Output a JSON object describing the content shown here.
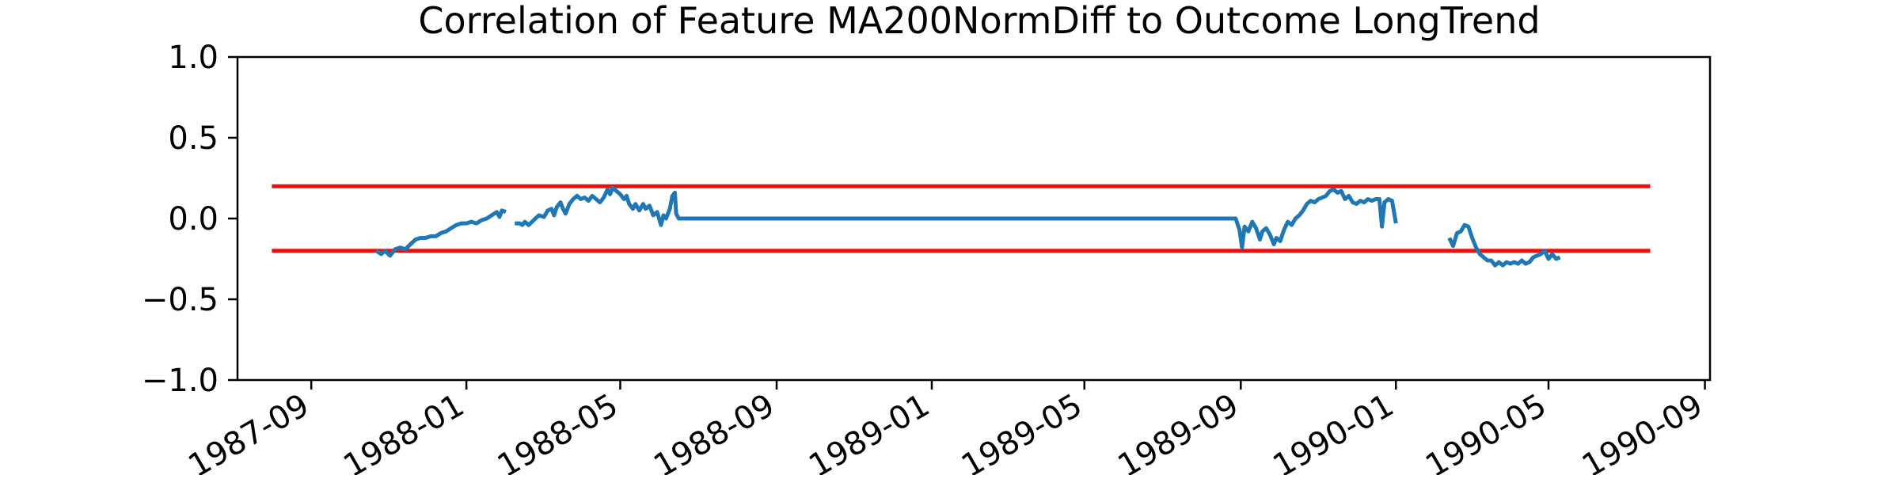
{
  "chart_data": {
    "type": "line",
    "title": "Correlation of Feature MA200NormDiff to Outcome LongTrend",
    "xlabel": "",
    "ylabel": "",
    "x_axis_type": "date",
    "xlim": [
      "1987-07-05",
      "1990-09-05"
    ],
    "ylim": [
      -1.0,
      1.0
    ],
    "grid": false,
    "x_ticks": [
      {
        "value": "1987-09-01",
        "label": "1987-09"
      },
      {
        "value": "1988-01-01",
        "label": "1988-01"
      },
      {
        "value": "1988-05-01",
        "label": "1988-05"
      },
      {
        "value": "1988-09-01",
        "label": "1988-09"
      },
      {
        "value": "1989-01-01",
        "label": "1989-01"
      },
      {
        "value": "1989-05-01",
        "label": "1989-05"
      },
      {
        "value": "1989-09-01",
        "label": "1989-09"
      },
      {
        "value": "1990-01-01",
        "label": "1990-01"
      },
      {
        "value": "1990-05-01",
        "label": "1990-05"
      },
      {
        "value": "1990-09-01",
        "label": "1990-09"
      }
    ],
    "y_ticks": [
      {
        "value": -1.0,
        "label": "−1.0"
      },
      {
        "value": -0.5,
        "label": "−0.5"
      },
      {
        "value": 0.0,
        "label": "0.0"
      },
      {
        "value": 0.5,
        "label": "0.5"
      },
      {
        "value": 1.0,
        "label": "1.0"
      }
    ],
    "series": [
      {
        "color": "#1f77b4",
        "segments": [
          [
            [
              "1987-10-22",
              -0.2
            ],
            [
              "1987-10-26",
              -0.22
            ],
            [
              "1987-10-29",
              -0.2
            ],
            [
              "1987-11-02",
              -0.23
            ],
            [
              "1987-11-06",
              -0.19
            ],
            [
              "1987-11-10",
              -0.18
            ],
            [
              "1987-11-14",
              -0.19
            ],
            [
              "1987-11-18",
              -0.16
            ],
            [
              "1987-11-22",
              -0.13
            ],
            [
              "1987-11-26",
              -0.12
            ],
            [
              "1987-11-30",
              -0.12
            ],
            [
              "1987-12-04",
              -0.11
            ],
            [
              "1987-12-08",
              -0.11
            ],
            [
              "1987-12-12",
              -0.09
            ],
            [
              "1987-12-16",
              -0.08
            ],
            [
              "1987-12-20",
              -0.06
            ],
            [
              "1987-12-24",
              -0.04
            ],
            [
              "1987-12-28",
              -0.03
            ],
            [
              "1988-01-01",
              -0.03
            ],
            [
              "1988-01-05",
              -0.02
            ],
            [
              "1988-01-09",
              -0.03
            ],
            [
              "1988-01-13",
              -0.01
            ],
            [
              "1988-01-17",
              0.0
            ],
            [
              "1988-01-21",
              0.02
            ],
            [
              "1988-01-25",
              0.04
            ],
            [
              "1988-01-27",
              0.01
            ],
            [
              "1988-01-29",
              0.05
            ],
            [
              "1988-02-01",
              0.04
            ]
          ],
          [
            [
              "1988-02-08",
              -0.03
            ],
            [
              "1988-02-12",
              -0.03
            ],
            [
              "1988-02-14",
              -0.04
            ],
            [
              "1988-02-16",
              -0.02
            ],
            [
              "1988-02-19",
              -0.04
            ],
            [
              "1988-02-23",
              -0.01
            ],
            [
              "1988-02-27",
              0.02
            ],
            [
              "1988-03-02",
              0.01
            ],
            [
              "1988-03-05",
              0.05
            ],
            [
              "1988-03-08",
              0.06
            ],
            [
              "1988-03-10",
              0.02
            ],
            [
              "1988-03-12",
              0.07
            ],
            [
              "1988-03-15",
              0.1
            ],
            [
              "1988-03-17",
              0.06
            ],
            [
              "1988-03-19",
              0.03
            ],
            [
              "1988-03-22",
              0.09
            ],
            [
              "1988-03-25",
              0.12
            ],
            [
              "1988-03-28",
              0.14
            ],
            [
              "1988-03-31",
              0.12
            ],
            [
              "1988-04-03",
              0.13
            ],
            [
              "1988-04-06",
              0.11
            ],
            [
              "1988-04-09",
              0.14
            ],
            [
              "1988-04-12",
              0.12
            ],
            [
              "1988-04-15",
              0.1
            ],
            [
              "1988-04-18",
              0.13
            ],
            [
              "1988-04-21",
              0.18
            ],
            [
              "1988-04-23",
              0.15
            ],
            [
              "1988-04-25",
              0.19
            ],
            [
              "1988-04-28",
              0.17
            ],
            [
              "1988-05-01",
              0.15
            ],
            [
              "1988-05-04",
              0.12
            ],
            [
              "1988-05-06",
              0.14
            ],
            [
              "1988-05-08",
              0.09
            ],
            [
              "1988-05-11",
              0.06
            ],
            [
              "1988-05-13",
              0.09
            ],
            [
              "1988-05-16",
              0.05
            ],
            [
              "1988-05-19",
              0.09
            ],
            [
              "1988-05-21",
              0.06
            ],
            [
              "1988-05-24",
              0.08
            ],
            [
              "1988-05-27",
              0.02
            ],
            [
              "1988-05-30",
              0.04
            ],
            [
              "1988-06-02",
              -0.04
            ],
            [
              "1988-06-04",
              0.02
            ],
            [
              "1988-06-06",
              0.0
            ],
            [
              "1988-06-09",
              0.06
            ],
            [
              "1988-06-11",
              0.14
            ],
            [
              "1988-06-13",
              0.16
            ],
            [
              "1988-06-14",
              0.03
            ],
            [
              "1988-06-16",
              0.0
            ],
            [
              "1988-09-01",
              0.0
            ],
            [
              "1989-01-01",
              0.0
            ],
            [
              "1989-05-01",
              0.0
            ],
            [
              "1989-08-28",
              0.0
            ],
            [
              "1989-08-31",
              -0.07
            ],
            [
              "1989-09-02",
              -0.18
            ],
            [
              "1989-09-04",
              -0.05
            ],
            [
              "1989-09-07",
              -0.08
            ],
            [
              "1989-09-10",
              -0.02
            ],
            [
              "1989-09-13",
              -0.06
            ],
            [
              "1989-09-16",
              -0.13
            ],
            [
              "1989-09-18",
              -0.08
            ],
            [
              "1989-09-21",
              -0.06
            ],
            [
              "1989-09-24",
              -0.1
            ],
            [
              "1989-09-27",
              -0.16
            ],
            [
              "1989-09-29",
              -0.12
            ],
            [
              "1989-10-02",
              -0.14
            ],
            [
              "1989-10-05",
              -0.07
            ],
            [
              "1989-10-08",
              -0.02
            ],
            [
              "1989-10-11",
              -0.04
            ],
            [
              "1989-10-14",
              0.0
            ],
            [
              "1989-10-17",
              0.02
            ],
            [
              "1989-10-20",
              0.05
            ],
            [
              "1989-10-23",
              0.09
            ],
            [
              "1989-10-26",
              0.11
            ],
            [
              "1989-10-29",
              0.1
            ],
            [
              "1989-11-01",
              0.12
            ],
            [
              "1989-11-04",
              0.13
            ],
            [
              "1989-11-07",
              0.14
            ],
            [
              "1989-11-10",
              0.17
            ],
            [
              "1989-11-13",
              0.18
            ],
            [
              "1989-11-16",
              0.16
            ],
            [
              "1989-11-19",
              0.17
            ],
            [
              "1989-11-22",
              0.12
            ],
            [
              "1989-11-25",
              0.14
            ],
            [
              "1989-11-28",
              0.1
            ],
            [
              "1989-12-01",
              0.09
            ],
            [
              "1989-12-04",
              0.11
            ],
            [
              "1989-12-07",
              0.1
            ],
            [
              "1989-12-10",
              0.12
            ],
            [
              "1989-12-13",
              0.11
            ],
            [
              "1989-12-16",
              0.12
            ],
            [
              "1989-12-19",
              0.12
            ],
            [
              "1989-12-21",
              -0.05
            ],
            [
              "1989-12-23",
              0.1
            ],
            [
              "1989-12-26",
              0.12
            ],
            [
              "1989-12-29",
              0.11
            ],
            [
              "1990-01-01",
              -0.03
            ]
          ],
          [
            [
              "1990-02-12",
              -0.12
            ],
            [
              "1990-02-15",
              -0.17
            ],
            [
              "1990-02-18",
              -0.09
            ],
            [
              "1990-02-21",
              -0.08
            ],
            [
              "1990-02-24",
              -0.04
            ],
            [
              "1990-02-27",
              -0.05
            ],
            [
              "1990-03-02",
              -0.12
            ],
            [
              "1990-03-05",
              -0.18
            ],
            [
              "1990-03-08",
              -0.22
            ],
            [
              "1990-03-11",
              -0.24
            ],
            [
              "1990-03-14",
              -0.26
            ],
            [
              "1990-03-17",
              -0.26
            ],
            [
              "1990-03-20",
              -0.29
            ],
            [
              "1990-03-23",
              -0.27
            ],
            [
              "1990-03-26",
              -0.29
            ],
            [
              "1990-03-29",
              -0.27
            ],
            [
              "1990-04-01",
              -0.28
            ],
            [
              "1990-04-04",
              -0.27
            ],
            [
              "1990-04-07",
              -0.28
            ],
            [
              "1990-04-10",
              -0.26
            ],
            [
              "1990-04-13",
              -0.28
            ],
            [
              "1990-04-16",
              -0.27
            ],
            [
              "1990-04-19",
              -0.24
            ],
            [
              "1990-04-22",
              -0.23
            ],
            [
              "1990-04-25",
              -0.22
            ],
            [
              "1990-04-28",
              -0.2
            ],
            [
              "1990-05-01",
              -0.25
            ],
            [
              "1990-05-04",
              -0.22
            ],
            [
              "1990-05-07",
              -0.25
            ],
            [
              "1990-05-10",
              -0.24
            ]
          ]
        ]
      }
    ],
    "reference_lines": [
      {
        "y": 0.2,
        "x_start": "1987-08-01",
        "x_end": "1990-07-20",
        "color": "#e8130d"
      },
      {
        "y": -0.2,
        "x_start": "1987-08-01",
        "x_end": "1990-07-20",
        "color": "#e8130d"
      }
    ]
  }
}
